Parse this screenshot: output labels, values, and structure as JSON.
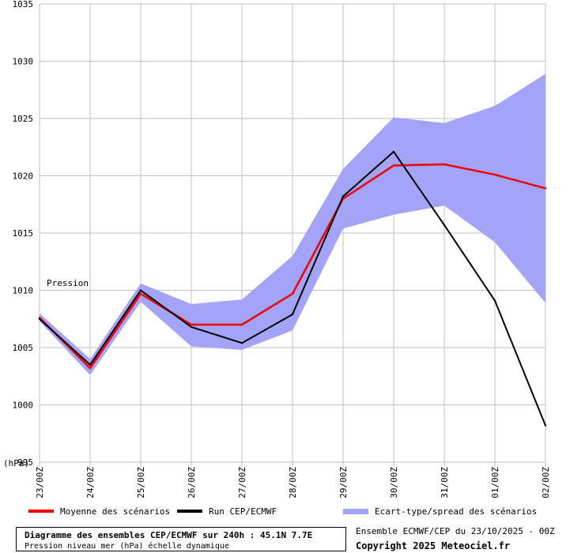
{
  "chart_data": {
    "type": "line",
    "x": [
      "23/00Z",
      "24/00Z",
      "25/00Z",
      "26/00Z",
      "27/00Z",
      "28/00Z",
      "29/00Z",
      "30/00Z",
      "31/00Z",
      "01/00Z",
      "02/00Z"
    ],
    "ylim": [
      995,
      1035
    ],
    "yticks": [
      1035,
      1030,
      1025,
      1020,
      1015,
      1010,
      1005,
      1000,
      995
    ],
    "ylabel": "(hPa)",
    "series_label": "Pression",
    "grid": true,
    "series": [
      {
        "name": "Moyenne des scénarios",
        "color": "#ee0000",
        "values": [
          1007.6,
          1003.2,
          1009.7,
          1007.0,
          1007.0,
          1009.7,
          1018.0,
          1020.9,
          1021.0,
          1020.1,
          1018.9
        ]
      },
      {
        "name": "Run CEP/ECMWF",
        "color": "#000000",
        "values": [
          1007.5,
          1003.5,
          1010.0,
          1006.8,
          1005.4,
          1007.9,
          1018.2,
          1022.1,
          1015.7,
          1009.1,
          998.2
        ]
      }
    ],
    "band": {
      "name": "Ecart-type/spread des scénarios",
      "color": "#a3a3f7",
      "upper": [
        1008.0,
        1004.0,
        1010.6,
        1008.8,
        1009.2,
        1013.0,
        1020.6,
        1025.1,
        1024.6,
        1026.1,
        1028.9
      ],
      "lower": [
        1007.3,
        1002.6,
        1009.0,
        1005.1,
        1004.8,
        1006.5,
        1015.4,
        1016.6,
        1017.4,
        1014.2,
        1008.9
      ]
    }
  },
  "legend": {
    "mean_label": "Moyenne des scénarios",
    "run_label": "Run CEP/ECMWF",
    "spread_label": "Ecart-type/spread des scénarios"
  },
  "info": {
    "title": "Diagramme des ensembles CEP/ECMWF sur 240h : 45.1N 7.7E",
    "subtitle": "Pression niveau mer (hPa) échelle dynamique",
    "run_info": "Ensemble ECMWF/CEP du 23/10/2025 - 00Z",
    "copyright": "Copyright 2025 Meteociel.fr"
  },
  "colors": {
    "mean": "#ee0000",
    "run": "#000000",
    "spread": "#a3a3f7",
    "grid": "#c0c0c0"
  }
}
